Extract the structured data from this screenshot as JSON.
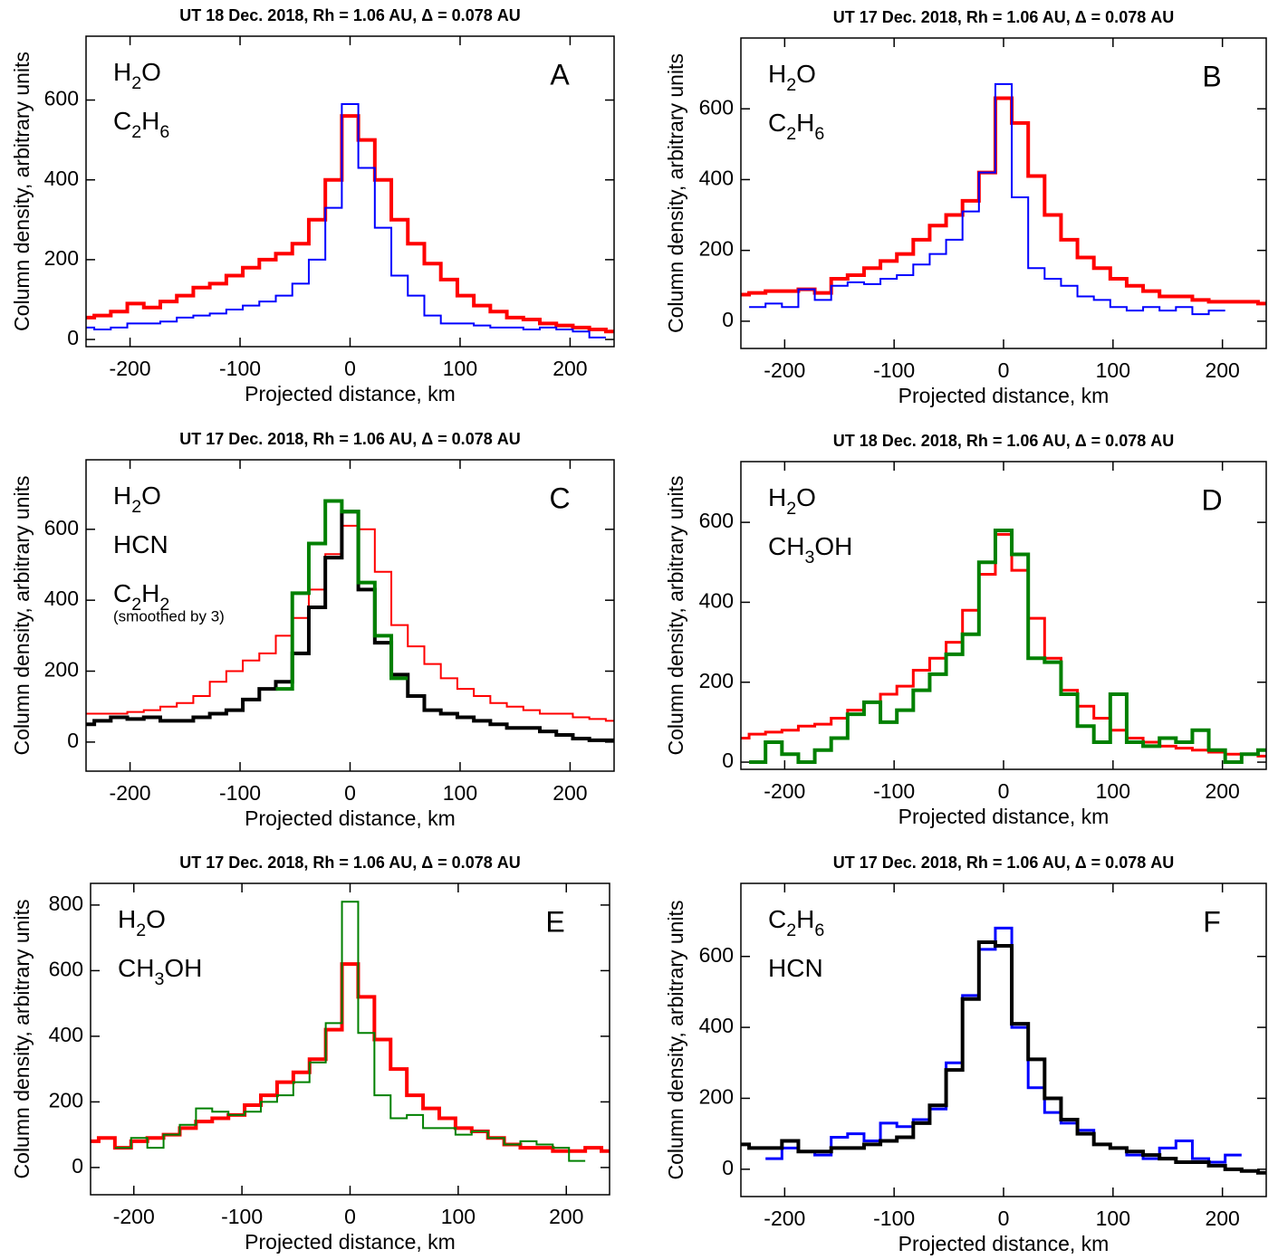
{
  "chart_data": [
    {
      "type": "step",
      "title": "UT 18 Dec. 2018,  Rh = 1.06 AU, Δ = 0.078 AU",
      "label": "A",
      "x_label": "Projected distance, km",
      "y_label": "Column density, arbitrary units",
      "xlim": [
        -240,
        240
      ],
      "ylim": [
        -18,
        760
      ],
      "xticks": [
        -200,
        -100,
        0,
        100,
        200
      ],
      "yticks": [
        0,
        200,
        400,
        600
      ],
      "x": [
        -240,
        -225,
        -210,
        -195,
        -180,
        -165,
        -150,
        -135,
        -120,
        -105,
        -90,
        -75,
        -60,
        -45,
        -30,
        -15,
        0,
        15,
        30,
        45,
        60,
        75,
        90,
        105,
        120,
        135,
        150,
        165,
        180,
        195,
        210,
        225,
        240
      ],
      "series": [
        {
          "name": "H2O",
          "color": "#ff0000",
          "line_width": 4,
          "values": [
            55,
            60,
            70,
            90,
            80,
            95,
            110,
            130,
            140,
            160,
            180,
            200,
            215,
            240,
            300,
            400,
            560,
            500,
            400,
            300,
            240,
            190,
            150,
            110,
            85,
            70,
            55,
            50,
            40,
            35,
            30,
            25,
            20
          ]
        },
        {
          "name": "C2H6",
          "color": "#0000ff",
          "line_width": 2,
          "values": [
            30,
            25,
            30,
            40,
            40,
            45,
            55,
            60,
            65,
            75,
            85,
            95,
            110,
            140,
            200,
            330,
            590,
            430,
            280,
            160,
            110,
            60,
            40,
            40,
            35,
            30,
            30,
            25,
            30,
            25,
            20,
            5,
            null
          ]
        }
      ]
    },
    {
      "type": "step",
      "title": "UT 17 Dec. 2018,  Rh = 1.06 AU, Δ = 0.078 AU",
      "label": "B",
      "x_label": "Projected distance, km",
      "y_label": "Column density, arbitrary units",
      "xlim": [
        -240,
        240
      ],
      "ylim": [
        -77,
        800
      ],
      "xticks": [
        -200,
        -100,
        0,
        100,
        200
      ],
      "yticks": [
        0,
        200,
        400,
        600
      ],
      "x": [
        -240,
        -225,
        -210,
        -195,
        -180,
        -165,
        -150,
        -135,
        -120,
        -105,
        -90,
        -75,
        -60,
        -45,
        -30,
        -15,
        0,
        15,
        30,
        45,
        60,
        75,
        90,
        105,
        120,
        135,
        150,
        165,
        180,
        195,
        210,
        225,
        240
      ],
      "series": [
        {
          "name": "H2O",
          "color": "#ff0000",
          "line_width": 4,
          "values": [
            75,
            80,
            85,
            85,
            90,
            80,
            120,
            130,
            150,
            170,
            190,
            230,
            270,
            300,
            340,
            420,
            630,
            560,
            410,
            300,
            230,
            180,
            150,
            120,
            100,
            85,
            70,
            70,
            60,
            55,
            55,
            55,
            50
          ]
        },
        {
          "name": "C2H6",
          "color": "#0000ff",
          "line_width": 2,
          "values": [
            null,
            40,
            50,
            40,
            90,
            60,
            100,
            110,
            105,
            120,
            130,
            160,
            190,
            230,
            310,
            420,
            670,
            350,
            150,
            120,
            100,
            70,
            60,
            40,
            30,
            40,
            30,
            40,
            20,
            30,
            null,
            null,
            null
          ]
        }
      ]
    },
    {
      "type": "step",
      "title": "UT 17 Dec. 2018,  Rh = 1.06 AU, Δ = 0.078 AU",
      "label": "C",
      "x_label": "Projected distance, km",
      "y_label": "Column density, arbitrary units",
      "xlim": [
        -240,
        240
      ],
      "ylim": [
        -82,
        796
      ],
      "xticks": [
        -200,
        -100,
        0,
        100,
        200
      ],
      "yticks": [
        0,
        200,
        400,
        600
      ],
      "x": [
        -240,
        -225,
        -210,
        -195,
        -180,
        -165,
        -150,
        -135,
        -120,
        -105,
        -90,
        -75,
        -60,
        -45,
        -30,
        -15,
        0,
        15,
        30,
        45,
        60,
        75,
        90,
        105,
        120,
        135,
        150,
        165,
        180,
        195,
        210,
        225,
        240
      ],
      "series": [
        {
          "name": "H2O",
          "color": "#ff0000",
          "line_width": 2,
          "values": [
            80,
            80,
            80,
            85,
            90,
            100,
            110,
            130,
            170,
            200,
            230,
            250,
            300,
            350,
            430,
            530,
            610,
            600,
            480,
            330,
            270,
            220,
            180,
            150,
            130,
            110,
            100,
            90,
            80,
            80,
            70,
            65,
            60
          ]
        },
        {
          "name": "HCN",
          "color": "#000000",
          "line_width": 4,
          "values": [
            50,
            60,
            70,
            65,
            70,
            60,
            60,
            70,
            80,
            90,
            120,
            150,
            170,
            250,
            380,
            520,
            650,
            430,
            280,
            190,
            130,
            90,
            80,
            70,
            60,
            50,
            40,
            40,
            30,
            20,
            10,
            5,
            5
          ]
        },
        {
          "name": "C2H2",
          "note": "(smoothed by 3)",
          "color": "#008000",
          "line_width": 4,
          "values": [
            null,
            null,
            null,
            null,
            null,
            null,
            null,
            null,
            null,
            null,
            null,
            null,
            150,
            420,
            560,
            680,
            650,
            450,
            300,
            180,
            null,
            null,
            null,
            null,
            null,
            null,
            null,
            null,
            null,
            null,
            null,
            null,
            null
          ]
        }
      ]
    },
    {
      "type": "step",
      "title": "UT 18 Dec. 2018,  Rh = 1.06 AU, Δ = 0.078 AU",
      "label": "D",
      "x_label": "Projected distance, km",
      "y_label": "Column density, arbitrary units",
      "xlim": [
        -240,
        240
      ],
      "ylim": [
        -18,
        752
      ],
      "xticks": [
        -200,
        -100,
        0,
        100,
        200
      ],
      "yticks": [
        0,
        200,
        400,
        600
      ],
      "x": [
        -240,
        -225,
        -210,
        -195,
        -180,
        -165,
        -150,
        -135,
        -120,
        -105,
        -90,
        -75,
        -60,
        -45,
        -30,
        -15,
        0,
        15,
        30,
        45,
        60,
        75,
        90,
        105,
        120,
        135,
        150,
        165,
        180,
        195,
        210,
        225,
        240
      ],
      "series": [
        {
          "name": "H2O",
          "color": "#ff0000",
          "line_width": 3,
          "values": [
            60,
            70,
            75,
            80,
            90,
            95,
            110,
            130,
            150,
            170,
            190,
            230,
            260,
            300,
            380,
            470,
            570,
            480,
            360,
            260,
            180,
            140,
            110,
            80,
            60,
            50,
            40,
            35,
            30,
            25,
            20,
            20,
            15
          ]
        },
        {
          "name": "CH3OH",
          "color": "#008000",
          "line_width": 4,
          "values": [
            null,
            0,
            50,
            20,
            0,
            30,
            60,
            120,
            150,
            100,
            130,
            180,
            220,
            270,
            320,
            500,
            580,
            520,
            260,
            250,
            170,
            90,
            50,
            170,
            50,
            40,
            60,
            50,
            80,
            30,
            0,
            20,
            30
          ]
        }
      ]
    },
    {
      "type": "step",
      "title": "UT 17 Dec. 2018,  Rh = 1.06 AU, Δ = 0.078 AU",
      "label": "E",
      "x_label": "Projected distance, km",
      "y_label": "Column density, arbitrary units",
      "xlim": [
        -240,
        240
      ],
      "ylim": [
        -83,
        866
      ],
      "xticks": [
        -200,
        -100,
        0,
        100,
        200
      ],
      "yticks": [
        0,
        200,
        400,
        600,
        800
      ],
      "x": [
        -240,
        -225,
        -210,
        -195,
        -180,
        -165,
        -150,
        -135,
        -120,
        -105,
        -90,
        -75,
        -60,
        -45,
        -30,
        -15,
        0,
        15,
        30,
        45,
        60,
        75,
        90,
        105,
        120,
        135,
        150,
        165,
        180,
        195,
        210,
        225,
        240
      ],
      "series": [
        {
          "name": "H2O",
          "color": "#ff0000",
          "line_width": 4,
          "values": [
            80,
            90,
            60,
            80,
            90,
            100,
            120,
            140,
            150,
            160,
            190,
            220,
            260,
            290,
            330,
            420,
            620,
            520,
            390,
            300,
            220,
            180,
            150,
            120,
            110,
            90,
            70,
            60,
            60,
            50,
            50,
            60,
            50
          ]
        },
        {
          "name": "CH3OH",
          "color": "#008000",
          "line_width": 2,
          "values": [
            null,
            null,
            60,
            90,
            60,
            100,
            130,
            180,
            170,
            160,
            170,
            200,
            220,
            260,
            320,
            440,
            810,
            410,
            220,
            150,
            160,
            120,
            120,
            100,
            110,
            90,
            70,
            80,
            70,
            60,
            20,
            null,
            null
          ]
        }
      ]
    },
    {
      "type": "step",
      "title": "UT 17 Dec. 2018,  Rh = 1.06 AU, Δ = 0.078 AU",
      "label": "F",
      "x_label": "Projected distance, km",
      "y_label": "Column density, arbitrary units",
      "xlim": [
        -240,
        240
      ],
      "ylim": [
        -77,
        806
      ],
      "xticks": [
        -200,
        -100,
        0,
        100,
        200
      ],
      "yticks": [
        0,
        200,
        400,
        600
      ],
      "x": [
        -240,
        -225,
        -210,
        -195,
        -180,
        -165,
        -150,
        -135,
        -120,
        -105,
        -90,
        -75,
        -60,
        -45,
        -30,
        -15,
        0,
        15,
        30,
        45,
        60,
        75,
        90,
        105,
        120,
        135,
        150,
        165,
        180,
        195,
        210,
        225,
        240
      ],
      "series": [
        {
          "name": "C2H6",
          "color": "#0000ff",
          "line_width": 3,
          "values": [
            null,
            null,
            30,
            60,
            50,
            40,
            90,
            100,
            80,
            130,
            120,
            140,
            170,
            300,
            490,
            620,
            680,
            400,
            230,
            160,
            130,
            110,
            70,
            60,
            40,
            30,
            60,
            80,
            30,
            20,
            40,
            null,
            null
          ]
        },
        {
          "name": "HCN",
          "color": "#000000",
          "line_width": 4,
          "values": [
            70,
            60,
            60,
            80,
            50,
            50,
            60,
            60,
            70,
            80,
            90,
            130,
            180,
            280,
            480,
            640,
            630,
            410,
            310,
            200,
            140,
            100,
            70,
            60,
            50,
            40,
            30,
            20,
            20,
            10,
            0,
            -5,
            -10
          ]
        }
      ]
    }
  ]
}
